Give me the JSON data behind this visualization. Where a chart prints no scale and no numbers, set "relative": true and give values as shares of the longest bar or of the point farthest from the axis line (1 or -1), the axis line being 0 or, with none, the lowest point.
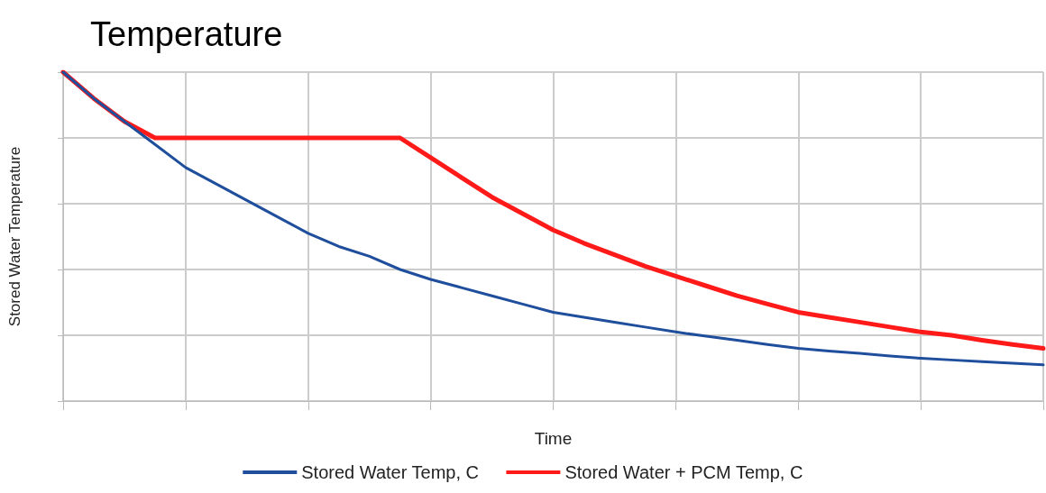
{
  "chart_data": {
    "type": "line",
    "title": "Temperature",
    "xlabel": "Time",
    "ylabel": "Stored Water Temperature",
    "relative": true,
    "grid": true,
    "legend": "bottom",
    "marker": "none",
    "line_style": "solid",
    "categories": [
      null,
      null,
      null,
      null,
      null,
      null,
      null,
      null,
      null,
      null,
      null,
      null,
      null,
      null,
      null,
      null,
      null,
      null,
      null,
      null,
      null,
      null,
      null,
      null,
      null,
      null,
      null,
      null,
      null,
      null,
      null,
      null,
      null
    ],
    "series": [
      {
        "name": "Stored Water Temp, C",
        "color": "#1f4e9c",
        "values": [
          1,
          0.92,
          0.85,
          0.78,
          0.71,
          0.66,
          0.61,
          0.56,
          0.51,
          0.47,
          0.44,
          0.4,
          0.37,
          0.345,
          0.32,
          0.295,
          0.27,
          0.255,
          0.24,
          0.225,
          0.21,
          0.197,
          0.185,
          0.172,
          0.16,
          0.152,
          0.145,
          0.137,
          0.13,
          0.125,
          0.12,
          0.115,
          0.11
        ]
      },
      {
        "name": "Stored Water + PCM Temp, C",
        "color": "#ff1a1a",
        "values": [
          1,
          0.92,
          0.85,
          0.8,
          0.8,
          0.8,
          0.8,
          0.8,
          0.8,
          0.8,
          0.8,
          0.8,
          0.74,
          0.68,
          0.62,
          0.57,
          0.52,
          0.48,
          0.445,
          0.41,
          0.38,
          0.35,
          0.32,
          0.295,
          0.27,
          0.255,
          0.24,
          0.225,
          0.21,
          0.2,
          0.185,
          0.172,
          0.16
        ]
      }
    ]
  }
}
